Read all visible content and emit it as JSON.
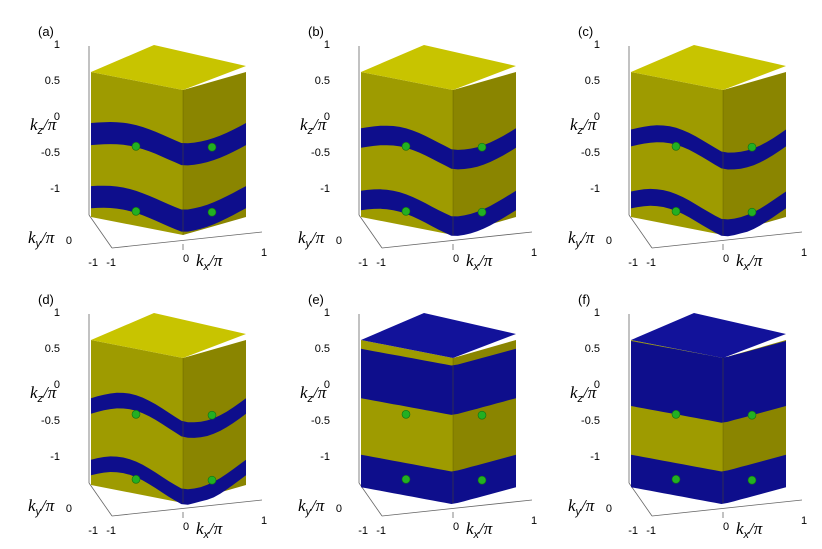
{
  "colors": {
    "yellow_top": "#C8C400",
    "yellow_left": "#9E9B00",
    "yellow_right": "#8A8500",
    "blue_top": "#12129A",
    "blue_face": "#0E0E8C",
    "sphere": "#22B022",
    "axis": "#666666"
  },
  "axes": {
    "kz_main": "k",
    "kz_sub": "z",
    "ky_main": "k",
    "ky_sub": "y",
    "kx_main": "k",
    "kx_sub": "x",
    "per_pi": "/π",
    "kz_ticks": [
      "1",
      "0.5",
      "0",
      "-0.5",
      "-1"
    ],
    "ky_ticks": [
      "0",
      "-1"
    ],
    "kx_ticks": [
      "-1",
      "0",
      "1"
    ]
  },
  "panels": [
    {
      "label": "(a)",
      "variant": "wavy",
      "top_color": "yellow",
      "bands": [
        {
          "center": 0.06,
          "half": 0.17,
          "amp": 0.1
        },
        {
          "center": -0.94,
          "half": 0.17,
          "amp": 0.1
        }
      ],
      "points": [
        [
          0.25,
          0.0
        ],
        [
          0.75,
          0.0
        ],
        [
          0.25,
          -1.0
        ],
        [
          0.75,
          -1.0
        ]
      ]
    },
    {
      "label": "(b)",
      "variant": "wavy",
      "top_color": "yellow",
      "bands": [
        {
          "center": 0.0,
          "half": 0.15,
          "amp": 0.13
        },
        {
          "center": -1.0,
          "half": 0.15,
          "amp": 0.13
        }
      ],
      "points": [
        [
          0.25,
          0.0
        ],
        [
          0.75,
          0.0
        ],
        [
          0.25,
          -1.0
        ],
        [
          0.75,
          -1.0
        ]
      ]
    },
    {
      "label": "(c)",
      "variant": "wavy",
      "top_color": "yellow",
      "bands": [
        {
          "center": 0.0,
          "half": 0.13,
          "amp": 0.16
        },
        {
          "center": -1.0,
          "half": 0.13,
          "amp": 0.16
        }
      ],
      "points": [
        [
          0.25,
          0.0
        ],
        [
          0.75,
          0.0
        ],
        [
          0.25,
          -1.0
        ],
        [
          0.75,
          -1.0
        ]
      ]
    },
    {
      "label": "(d)",
      "variant": "wavy",
      "top_color": "yellow",
      "bands": [
        {
          "center": 0.0,
          "half": 0.12,
          "amp": 0.18
        },
        {
          "center": -1.0,
          "half": 0.12,
          "amp": 0.18
        }
      ],
      "points": [
        [
          0.25,
          0.0
        ],
        [
          0.75,
          0.0
        ],
        [
          0.25,
          -1.0
        ],
        [
          0.75,
          -1.0
        ]
      ]
    },
    {
      "label": "(e)",
      "variant": "flat",
      "top_color": "blue",
      "bands": [
        {
          "center": 0.5,
          "half": 0.38,
          "amp": 0.0
        },
        {
          "center": -1.0,
          "half": 0.25,
          "amp": 0.0
        }
      ],
      "points": [
        [
          0.25,
          0.0
        ],
        [
          0.75,
          0.0
        ],
        [
          0.25,
          -1.0
        ],
        [
          0.75,
          -1.0
        ]
      ]
    },
    {
      "label": "(f)",
      "variant": "flat",
      "top_color": "blue",
      "bands": [
        {
          "center": 0.5,
          "half": 0.5,
          "amp": 0.0
        },
        {
          "center": -1.0,
          "half": 0.25,
          "amp": 0.0
        }
      ],
      "points": [
        [
          0.25,
          0.0
        ],
        [
          0.75,
          0.0
        ],
        [
          0.25,
          -1.0
        ],
        [
          0.75,
          -1.0
        ]
      ]
    }
  ]
}
